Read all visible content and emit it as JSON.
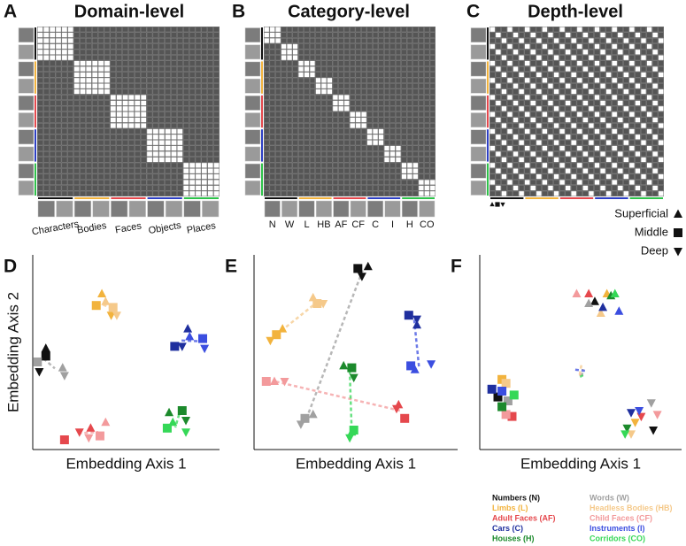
{
  "panels": [
    {
      "letter": "A",
      "title": "Domain-level",
      "labels": [
        "Characters",
        "Bodies",
        "Faces",
        "Objects",
        "Places"
      ]
    },
    {
      "letter": "B",
      "title": "Category-level",
      "labels": [
        "N",
        "W",
        "L",
        "HB",
        "AF",
        "CF",
        "C",
        "I",
        "H",
        "CO"
      ]
    },
    {
      "letter": "C",
      "title": "Depth-level",
      "depth_legend": [
        "Superficial",
        "Middle",
        "Deep"
      ]
    }
  ],
  "chart_data": [
    {
      "type": "scatter",
      "letter": "D",
      "x_label": "Embedding Axis 1",
      "y_label": "Embedding Axis 2",
      "xlim": [
        0,
        10
      ],
      "ylim": [
        0,
        10
      ],
      "series": [
        {
          "x": [
            0.7,
            0.7,
            0.35
          ],
          "y": [
            5.2,
            4.8,
            4.0
          ]
        },
        {
          "x": [
            1.6,
            0.25,
            1.7
          ],
          "y": [
            4.2,
            4.5,
            3.8
          ]
        },
        {
          "x": [
            3.7,
            3.4,
            4.2
          ],
          "y": [
            8.0,
            7.4,
            6.9
          ]
        },
        {
          "x": [
            3.9,
            4.3,
            4.5
          ],
          "y": [
            7.6,
            7.3,
            6.9
          ]
        },
        {
          "x": [
            3.1,
            1.7,
            2.5
          ],
          "y": [
            1.1,
            0.5,
            0.9
          ]
        },
        {
          "x": [
            3.9,
            3.6,
            3.0
          ],
          "y": [
            1.4,
            0.7,
            0.6
          ]
        },
        {
          "x": [
            8.3,
            7.6,
            8.0
          ],
          "y": [
            6.2,
            5.3,
            5.3
          ]
        },
        {
          "x": [
            8.4,
            9.1,
            9.2
          ],
          "y": [
            5.8,
            5.7,
            5.2
          ]
        },
        {
          "x": [
            7.3,
            8.0,
            8.2
          ],
          "y": [
            1.9,
            2.0,
            1.5
          ]
        },
        {
          "x": [
            7.5,
            7.2,
            8.2
          ],
          "y": [
            1.4,
            1.1,
            0.9
          ]
        }
      ]
    },
    {
      "type": "scatter",
      "letter": "E",
      "x_label": "Embedding Axis 1",
      "xlim": [
        0,
        10
      ],
      "ylim": [
        0,
        10
      ],
      "series": [
        {
          "x": [
            5.6,
            5.1,
            5.3
          ],
          "y": [
            9.4,
            9.3,
            8.9
          ]
        },
        {
          "x": [
            2.9,
            2.5,
            2.3
          ],
          "y": [
            1.8,
            1.6,
            1.3
          ]
        },
        {
          "x": [
            1.4,
            1.1,
            0.8
          ],
          "y": [
            6.2,
            5.9,
            5.6
          ]
        },
        {
          "x": [
            2.9,
            3.1,
            3.4
          ],
          "y": [
            7.8,
            7.5,
            7.5
          ]
        },
        {
          "x": [
            7.1,
            7.4,
            7.0
          ],
          "y": [
            2.3,
            1.6,
            2.1
          ]
        },
        {
          "x": [
            1.0,
            0.6,
            1.5
          ],
          "y": [
            3.5,
            3.5,
            3.5
          ]
        },
        {
          "x": [
            8.0,
            7.6,
            8.0
          ],
          "y": [
            6.4,
            6.9,
            6.7
          ]
        },
        {
          "x": [
            7.9,
            7.7,
            8.7
          ],
          "y": [
            4.1,
            4.3,
            4.4
          ]
        },
        {
          "x": [
            4.4,
            4.8,
            4.9
          ],
          "y": [
            4.3,
            4.2,
            3.7
          ]
        },
        {
          "x": [
            4.8,
            4.9,
            4.7
          ],
          "y": [
            0.9,
            1.0,
            0.6
          ]
        }
      ]
    },
    {
      "type": "scatter",
      "letter": "F",
      "x_label": "Embedding Axis 1",
      "xlim": [
        0,
        10
      ],
      "ylim": [
        0,
        10
      ],
      "series": [
        {
          "x": [
            5.7,
            0.9,
            8.6
          ],
          "y": [
            7.6,
            2.7,
            1.0
          ]
        },
        {
          "x": [
            5.4,
            1.4,
            8.5
          ],
          "y": [
            7.5,
            2.5,
            2.4
          ]
        },
        {
          "x": [
            6.3,
            1.1,
            7.7
          ],
          "y": [
            8.0,
            3.6,
            1.4
          ]
        },
        {
          "x": [
            6.0,
            1.3,
            7.5
          ],
          "y": [
            7.0,
            3.4,
            0.8
          ]
        },
        {
          "x": [
            5.4,
            1.6,
            8.0
          ],
          "y": [
            8.0,
            1.7,
            1.7
          ]
        },
        {
          "x": [
            4.8,
            1.3,
            8.8
          ],
          "y": [
            8.0,
            1.8,
            1.8
          ]
        },
        {
          "x": [
            6.1,
            0.6,
            7.5
          ],
          "y": [
            7.3,
            3.1,
            1.9
          ]
        },
        {
          "x": [
            6.9,
            1.1,
            7.9
          ],
          "y": [
            7.1,
            3.0,
            2.0
          ]
        },
        {
          "x": [
            6.5,
            1.1,
            7.3
          ],
          "y": [
            7.9,
            2.2,
            1.1
          ]
        },
        {
          "x": [
            6.7,
            1.7,
            7.2
          ],
          "y": [
            8.0,
            2.8,
            0.8
          ]
        }
      ]
    }
  ],
  "legend": [
    {
      "name": "Numbers (N)",
      "color": "#111111"
    },
    {
      "name": "Words (W)",
      "color": "#a0a0a0"
    },
    {
      "name": "Limbs (L)",
      "color": "#f2b33d"
    },
    {
      "name": "Headless Bodies (HB)",
      "color": "#f5c98a"
    },
    {
      "name": "Adult Faces (AF)",
      "color": "#e5484d"
    },
    {
      "name": "Child Faces (CF)",
      "color": "#f39a9c"
    },
    {
      "name": "Cars (C)",
      "color": "#1f2f9e"
    },
    {
      "name": "Instruments (I)",
      "color": "#3b4ee0"
    },
    {
      "name": "Houses (H)",
      "color": "#1c8a2c"
    },
    {
      "name": "Corridors (CO)",
      "color": "#35d857"
    }
  ]
}
